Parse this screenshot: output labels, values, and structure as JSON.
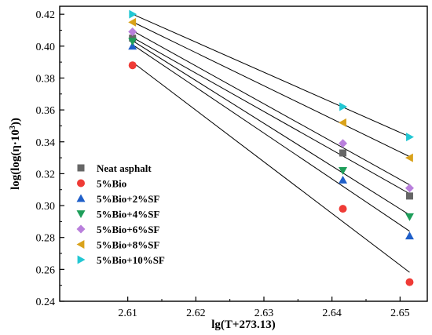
{
  "chart_data": {
    "type": "scatter",
    "title": "",
    "xlabel": "lg(T+273.13)",
    "ylabel_parts": [
      "log(log(η·10",
      "3",
      "))"
    ],
    "xlim": [
      2.6,
      2.654
    ],
    "ylim": [
      0.24,
      0.425
    ],
    "xticks": [
      2.61,
      2.62,
      2.63,
      2.64,
      2.65
    ],
    "xtick_labels": [
      "2.61",
      "2.62",
      "2.63",
      "2.64",
      "2.65"
    ],
    "yticks": [
      0.24,
      0.26,
      0.28,
      0.3,
      0.32,
      0.34,
      0.36,
      0.38,
      0.4,
      0.42
    ],
    "ytick_labels": [
      "0.24",
      "0.26",
      "0.28",
      "0.30",
      "0.32",
      "0.34",
      "0.36",
      "0.38",
      "0.40",
      "0.42"
    ],
    "grid": false,
    "legend_position": "bottom-left",
    "x": [
      2.6107,
      2.6416,
      2.6514
    ],
    "series": [
      {
        "name": "Neat asphalt",
        "marker": "square",
        "color": "#666666",
        "values": [
          0.405,
          0.333,
          0.306
        ]
      },
      {
        "name": "5%Bio",
        "marker": "circle",
        "color": "#ef3b36",
        "values": [
          0.388,
          0.298,
          0.252
        ]
      },
      {
        "name": "5%Bio+2%SF",
        "marker": "triangle-up",
        "color": "#1f5fc9",
        "values": [
          0.4,
          0.316,
          0.281
        ]
      },
      {
        "name": "5%Bio+4%SF",
        "marker": "triangle-down",
        "color": "#1e9e5a",
        "values": [
          0.403,
          0.322,
          0.293
        ]
      },
      {
        "name": "5%Bio+6%SF",
        "marker": "diamond",
        "color": "#b97fdc",
        "values": [
          0.409,
          0.339,
          0.311
        ]
      },
      {
        "name": "5%Bio+8%SF",
        "marker": "triangle-left",
        "color": "#d9a21b",
        "values": [
          0.415,
          0.352,
          0.33
        ]
      },
      {
        "name": "5%Bio+10%SF",
        "marker": "triangle-right",
        "color": "#22c7d3",
        "values": [
          0.42,
          0.362,
          0.343
        ]
      }
    ]
  }
}
